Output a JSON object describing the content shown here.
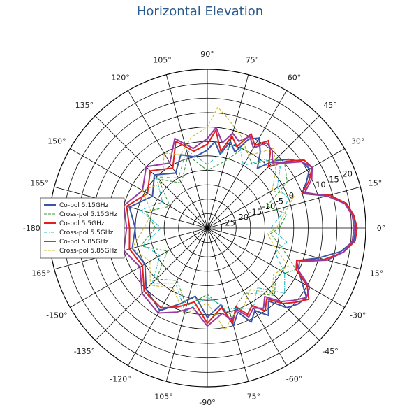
{
  "title": "Horizontal Elevation",
  "chart_data": {
    "type": "polar-line",
    "title": "Horizontal Elevation",
    "angle_unit": "degrees",
    "angle_ticks": [
      0,
      15,
      30,
      45,
      60,
      75,
      90,
      105,
      120,
      135,
      150,
      165,
      180,
      -165,
      -150,
      -135,
      -120,
      -105,
      -90,
      -75,
      -60,
      -45,
      -30,
      -15
    ],
    "angle_tick_labels": [
      "0°",
      "15°",
      "30°",
      "45°",
      "60°",
      "75°",
      "90°",
      "105°",
      "120°",
      "135°",
      "150°",
      "165°",
      "-180°",
      "-165°",
      "-150°",
      "-135°",
      "-120°",
      "-105°",
      "-90°",
      "-75°",
      "-60°",
      "-45°",
      "-30°",
      "-15°"
    ],
    "radial_ticks": [
      -25,
      -20,
      -15,
      -10,
      -5,
      0,
      5,
      10,
      15,
      20
    ],
    "radial_tick_labels": [
      "-25",
      "-20",
      "-15",
      "-10",
      "-5",
      "0",
      "5",
      "10",
      "15",
      "20"
    ],
    "rlim": [
      -30,
      25
    ],
    "grid": true,
    "legend_position": "left",
    "series": [
      {
        "name": "Co-pol 5.15GHz",
        "color": "#3a55a8",
        "dash": "solid",
        "points": [
          [
            0,
            21.5
          ],
          [
            5,
            21
          ],
          [
            10,
            19
          ],
          [
            15,
            13
          ],
          [
            20,
            5
          ],
          [
            25,
            8
          ],
          [
            30,
            11
          ],
          [
            35,
            10
          ],
          [
            40,
            7
          ],
          [
            45,
            3
          ],
          [
            50,
            -3
          ],
          [
            55,
            2
          ],
          [
            60,
            6
          ],
          [
            65,
            4
          ],
          [
            70,
            -2
          ],
          [
            75,
            1
          ],
          [
            80,
            -4
          ],
          [
            85,
            0
          ],
          [
            90,
            -3
          ],
          [
            100,
            -5
          ],
          [
            110,
            -3
          ],
          [
            120,
            -8
          ],
          [
            135,
            -4
          ],
          [
            150,
            -8
          ],
          [
            165,
            -2
          ],
          [
            180,
            -5
          ],
          [
            -165,
            -3
          ],
          [
            -150,
            -5
          ],
          [
            -135,
            0
          ],
          [
            -120,
            3
          ],
          [
            -110,
            -2
          ],
          [
            -100,
            -6
          ],
          [
            -90,
            1
          ],
          [
            -80,
            -3
          ],
          [
            -75,
            5
          ],
          [
            -70,
            1
          ],
          [
            -65,
            6
          ],
          [
            -60,
            3
          ],
          [
            -55,
            7
          ],
          [
            -50,
            3
          ],
          [
            -45,
            9
          ],
          [
            -40,
            11
          ],
          [
            -35,
            12
          ],
          [
            -30,
            8
          ],
          [
            -25,
            5
          ],
          [
            -20,
            3
          ],
          [
            -15,
            10
          ],
          [
            -10,
            17
          ],
          [
            -5,
            21
          ]
        ]
      },
      {
        "name": "Cross-pol 5.15GHz",
        "color": "#3a9a3a",
        "dash": "dashed",
        "points": [
          [
            0,
            -5
          ],
          [
            10,
            -2
          ],
          [
            20,
            -8
          ],
          [
            30,
            2
          ],
          [
            40,
            5
          ],
          [
            45,
            4
          ],
          [
            55,
            -3
          ],
          [
            65,
            1
          ],
          [
            75,
            -6
          ],
          [
            90,
            -10
          ],
          [
            105,
            -4
          ],
          [
            120,
            -12
          ],
          [
            135,
            -6
          ],
          [
            150,
            -15
          ],
          [
            165,
            -8
          ],
          [
            180,
            -12
          ],
          [
            -165,
            -6
          ],
          [
            -150,
            -14
          ],
          [
            -135,
            -5
          ],
          [
            -120,
            -9
          ],
          [
            -105,
            -2
          ],
          [
            -90,
            -7
          ],
          [
            -75,
            1
          ],
          [
            -60,
            -4
          ],
          [
            -45,
            3
          ],
          [
            -35,
            -1
          ],
          [
            -25,
            4
          ],
          [
            -15,
            -3
          ],
          [
            -5,
            -8
          ]
        ]
      },
      {
        "name": "Co-pol 5.5GHz",
        "color": "#e02020",
        "dash": "solid",
        "points": [
          [
            0,
            22
          ],
          [
            5,
            21
          ],
          [
            10,
            19
          ],
          [
            15,
            14
          ],
          [
            20,
            5
          ],
          [
            25,
            9
          ],
          [
            30,
            12
          ],
          [
            35,
            11
          ],
          [
            40,
            6
          ],
          [
            45,
            0
          ],
          [
            50,
            4
          ],
          [
            55,
            7
          ],
          [
            60,
            3
          ],
          [
            65,
            6
          ],
          [
            70,
            0
          ],
          [
            75,
            3
          ],
          [
            80,
            -3
          ],
          [
            85,
            4
          ],
          [
            90,
            -1
          ],
          [
            100,
            -3
          ],
          [
            110,
            2
          ],
          [
            120,
            -6
          ],
          [
            135,
            -2
          ],
          [
            150,
            -6
          ],
          [
            165,
            -1
          ],
          [
            180,
            -3
          ],
          [
            -165,
            -2
          ],
          [
            -150,
            -4
          ],
          [
            -135,
            1
          ],
          [
            -120,
            2
          ],
          [
            -110,
            -1
          ],
          [
            -100,
            -4
          ],
          [
            -90,
            3
          ],
          [
            -80,
            -2
          ],
          [
            -75,
            4
          ],
          [
            -70,
            -1
          ],
          [
            -65,
            3
          ],
          [
            -60,
            1
          ],
          [
            -55,
            5
          ],
          [
            -50,
            2
          ],
          [
            -45,
            7
          ],
          [
            -40,
            10
          ],
          [
            -35,
            13
          ],
          [
            -30,
            10
          ],
          [
            -25,
            4
          ],
          [
            -20,
            3
          ],
          [
            -15,
            12
          ],
          [
            -10,
            18
          ],
          [
            -5,
            21.5
          ]
        ]
      },
      {
        "name": "Cross-pol 5.5GHz",
        "color": "#20b8c8",
        "dash": "dashdot",
        "points": [
          [
            0,
            -8
          ],
          [
            10,
            -4
          ],
          [
            20,
            0
          ],
          [
            30,
            -2
          ],
          [
            40,
            3
          ],
          [
            50,
            1
          ],
          [
            60,
            -5
          ],
          [
            70,
            2
          ],
          [
            80,
            -4
          ],
          [
            90,
            -8
          ],
          [
            105,
            -2
          ],
          [
            120,
            -10
          ],
          [
            135,
            -5
          ],
          [
            150,
            -12
          ],
          [
            165,
            -6
          ],
          [
            180,
            -14
          ],
          [
            -165,
            -7
          ],
          [
            -150,
            -11
          ],
          [
            -135,
            -3
          ],
          [
            -120,
            -8
          ],
          [
            -105,
            0
          ],
          [
            -90,
            -6
          ],
          [
            -75,
            -1
          ],
          [
            -60,
            2
          ],
          [
            -50,
            -3
          ],
          [
            -40,
            5
          ],
          [
            -30,
            1
          ],
          [
            -20,
            -5
          ],
          [
            -10,
            -2
          ]
        ]
      },
      {
        "name": "Co-pol 5.85GHz",
        "color": "#9a3aa0",
        "dash": "solid",
        "points": [
          [
            0,
            21
          ],
          [
            5,
            20.5
          ],
          [
            10,
            18.5
          ],
          [
            15,
            13
          ],
          [
            20,
            6
          ],
          [
            25,
            10
          ],
          [
            30,
            12
          ],
          [
            35,
            10
          ],
          [
            40,
            5
          ],
          [
            45,
            2
          ],
          [
            50,
            5
          ],
          [
            55,
            6
          ],
          [
            60,
            2
          ],
          [
            65,
            5
          ],
          [
            70,
            2
          ],
          [
            75,
            4
          ],
          [
            80,
            0
          ],
          [
            85,
            5
          ],
          [
            90,
            1
          ],
          [
            100,
            -2
          ],
          [
            110,
            3
          ],
          [
            120,
            -4
          ],
          [
            135,
            0
          ],
          [
            150,
            -4
          ],
          [
            165,
            0
          ],
          [
            180,
            -2
          ],
          [
            -165,
            0
          ],
          [
            -150,
            -3
          ],
          [
            -135,
            2
          ],
          [
            -120,
            4
          ],
          [
            -110,
            1
          ],
          [
            -100,
            -2
          ],
          [
            -90,
            4
          ],
          [
            -80,
            0
          ],
          [
            -75,
            3
          ],
          [
            -70,
            0
          ],
          [
            -65,
            4
          ],
          [
            -60,
            2
          ],
          [
            -55,
            4
          ],
          [
            -50,
            1
          ],
          [
            -45,
            6
          ],
          [
            -40,
            9
          ],
          [
            -35,
            12
          ],
          [
            -30,
            11
          ],
          [
            -25,
            5
          ],
          [
            -20,
            4
          ],
          [
            -15,
            13
          ],
          [
            -10,
            18
          ],
          [
            -5,
            20.5
          ]
        ]
      },
      {
        "name": "Cross-pol 5.85GHz",
        "color": "#c8b830",
        "dash": "dashed",
        "points": [
          [
            0,
            -6
          ],
          [
            10,
            -3
          ],
          [
            20,
            2
          ],
          [
            30,
            -4
          ],
          [
            40,
            1
          ],
          [
            50,
            6
          ],
          [
            60,
            -1
          ],
          [
            70,
            4
          ],
          [
            80,
            9
          ],
          [
            85,
            12
          ],
          [
            90,
            5
          ],
          [
            100,
            2
          ],
          [
            110,
            -3
          ],
          [
            120,
            0
          ],
          [
            135,
            -8
          ],
          [
            150,
            -4
          ],
          [
            165,
            -10
          ],
          [
            180,
            -8
          ],
          [
            -165,
            -3
          ],
          [
            -150,
            -7
          ],
          [
            -135,
            -2
          ],
          [
            -120,
            -6
          ],
          [
            -105,
            1
          ],
          [
            -90,
            -4
          ],
          [
            -80,
            6
          ],
          [
            -75,
            2
          ],
          [
            -65,
            0
          ],
          [
            -55,
            -4
          ],
          [
            -45,
            2
          ],
          [
            -35,
            -2
          ],
          [
            -25,
            1
          ],
          [
            -15,
            -6
          ],
          [
            -5,
            -9
          ]
        ]
      }
    ]
  }
}
